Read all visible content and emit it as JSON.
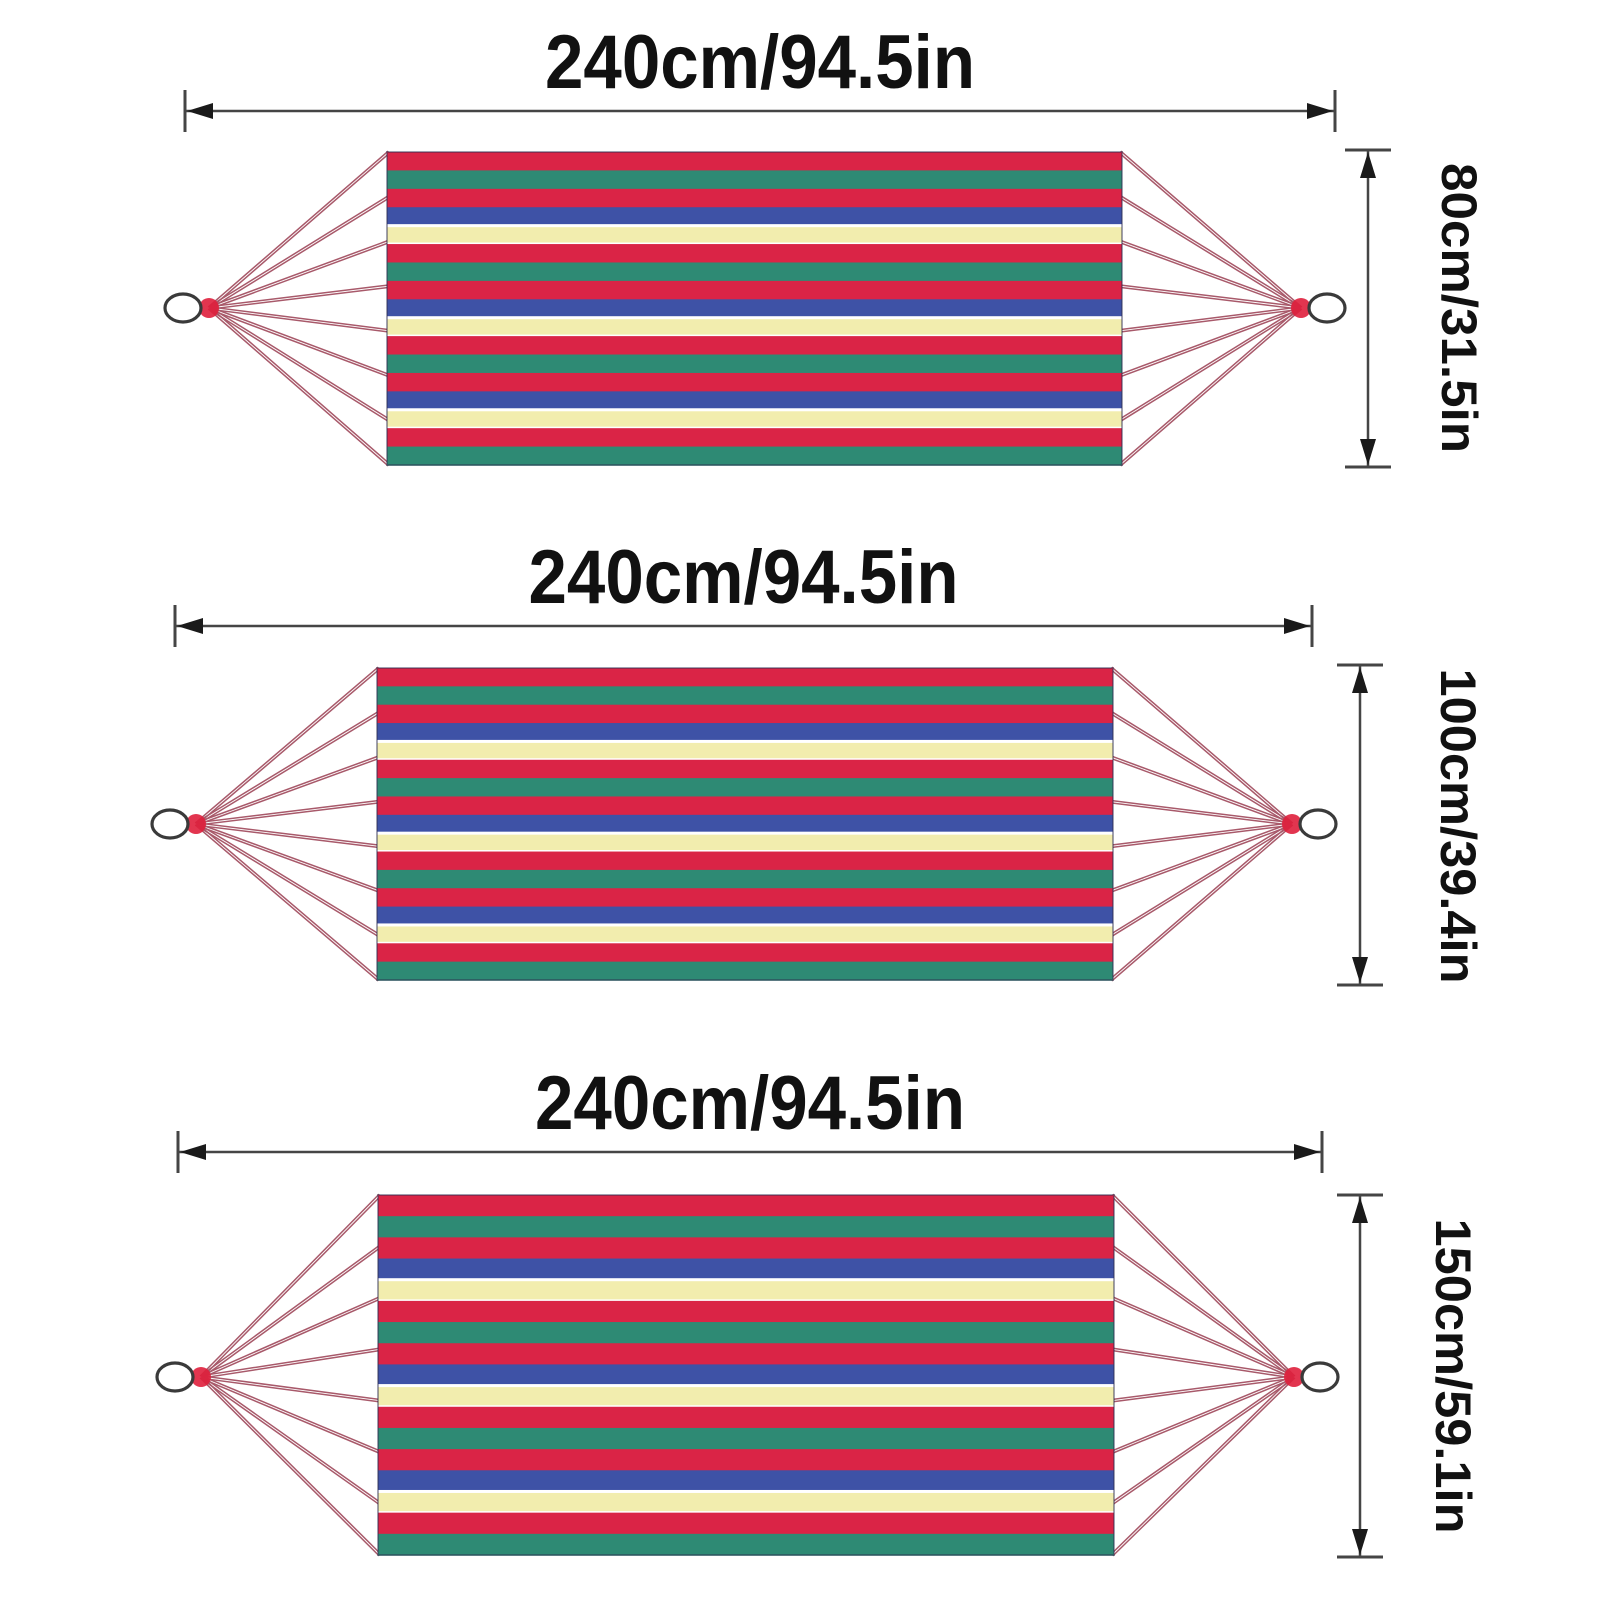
{
  "figure": {
    "kind": "product-size-diagram",
    "subject": "striped hammock with spreader ropes and end rings",
    "variants_count": 3
  },
  "colors": {
    "stripe_red": "#da2446",
    "stripe_green": "#2e8a74",
    "stripe_blue": "#3e52a6",
    "stripe_yellow": "#f2edae",
    "yellow_hairline": "#ffffff",
    "fabric_outline": "#2c2c50",
    "rope": "#a8596a",
    "rope_hotspot": "#df1f3c",
    "ring_fill": "#ffffff",
    "ring_stroke": "#3a3a3a",
    "dimension_line": "#454545",
    "arrowhead": "#1a1a1a",
    "text": "#111111",
    "background": "#ffffff"
  },
  "stripe_sequence": [
    "red",
    "green",
    "red",
    "blue",
    "yellow",
    "red",
    "green",
    "red",
    "blue",
    "yellow",
    "red",
    "green",
    "red",
    "blue",
    "yellow",
    "red",
    "green"
  ],
  "ropes_per_side": 8,
  "diagrams": [
    {
      "id": "hammock-80cm",
      "width_label": "240cm/94.5in",
      "height_label": "80cm/31.5in",
      "width_cm": 240,
      "width_in": 94.5,
      "height_cm": 80,
      "height_in": 31.5
    },
    {
      "id": "hammock-100cm",
      "width_label": "240cm/94.5in",
      "height_label": "100cm/39.4in",
      "width_cm": 240,
      "width_in": 94.5,
      "height_cm": 100,
      "height_in": 39.4
    },
    {
      "id": "hammock-150cm",
      "width_label": "240cm/94.5in",
      "height_label": "150cm/59.1in",
      "width_cm": 240,
      "width_in": 94.5,
      "height_cm": 150,
      "height_in": 59.1
    }
  ]
}
